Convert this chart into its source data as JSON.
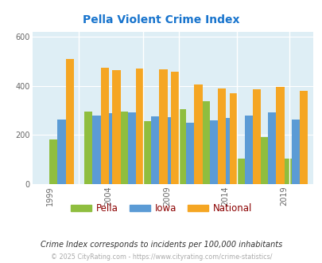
{
  "title": "Pella Violent Crime Index",
  "title_color": "#1874cd",
  "background_color": "#deeef5",
  "years": [
    2000,
    2003,
    2004,
    2006,
    2008,
    2009,
    2011,
    2013,
    2014,
    2016,
    2018,
    2020
  ],
  "pella": [
    183,
    295,
    265,
    295,
    255,
    225,
    305,
    337,
    168,
    103,
    192,
    103
  ],
  "iowa": [
    262,
    278,
    288,
    292,
    275,
    272,
    251,
    258,
    270,
    280,
    292,
    262
  ],
  "national": [
    507,
    472,
    462,
    470,
    465,
    457,
    404,
    390,
    368,
    387,
    396,
    380
  ],
  "pella_color": "#8fbe3f",
  "iowa_color": "#5b9bd5",
  "national_color": "#f5a623",
  "xtick_labels": [
    "1999",
    "2004",
    "2009",
    "2014",
    "2019"
  ],
  "xtick_positions": [
    1999,
    2004,
    2009,
    2014,
    2019
  ],
  "xlim": [
    1997.5,
    2021.5
  ],
  "ylim": [
    0,
    620
  ],
  "yticks": [
    0,
    200,
    400,
    600
  ],
  "legend_subtitle": "Crime Index corresponds to incidents per 100,000 inhabitants",
  "footer": "© 2025 CityRating.com - https://www.cityrating.com/crime-statistics/",
  "bar_width": 0.7
}
